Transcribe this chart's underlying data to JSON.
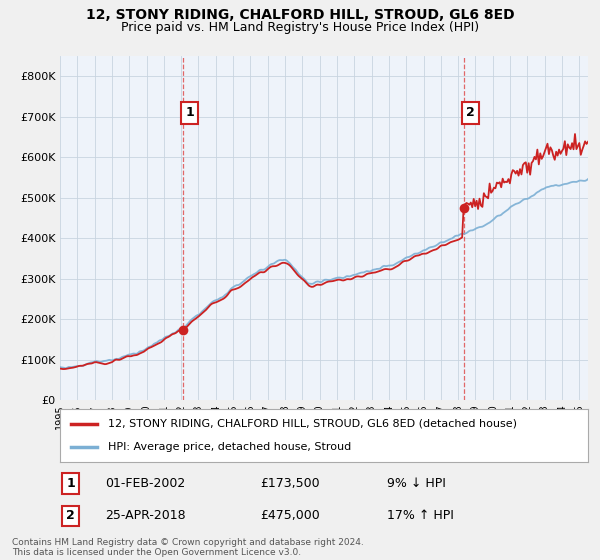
{
  "title_line1": "12, STONY RIDING, CHALFORD HILL, STROUD, GL6 8ED",
  "title_line2": "Price paid vs. HM Land Registry's House Price Index (HPI)",
  "legend_label1": "12, STONY RIDING, CHALFORD HILL, STROUD, GL6 8ED (detached house)",
  "legend_label2": "HPI: Average price, detached house, Stroud",
  "annotation1_label": "1",
  "annotation1_date": "01-FEB-2002",
  "annotation1_price": "£173,500",
  "annotation1_hpi": "9% ↓ HPI",
  "annotation2_label": "2",
  "annotation2_date": "25-APR-2018",
  "annotation2_price": "£475,000",
  "annotation2_hpi": "17% ↑ HPI",
  "footer": "Contains HM Land Registry data © Crown copyright and database right 2024.\nThis data is licensed under the Open Government Licence v3.0.",
  "hpi_color": "#7bafd4",
  "sale_color": "#cc2222",
  "vline_color": "#dd4444",
  "marker_color": "#cc2222",
  "ylim_min": 0,
  "ylim_max": 850000,
  "yticks": [
    0,
    100000,
    200000,
    300000,
    400000,
    500000,
    600000,
    700000,
    800000
  ],
  "ytick_labels": [
    "£0",
    "£100K",
    "£200K",
    "£300K",
    "£400K",
    "£500K",
    "£600K",
    "£700K",
    "£800K"
  ],
  "sale1_x": 2002.08,
  "sale1_y": 173500,
  "sale2_x": 2018.32,
  "sale2_y": 475000,
  "xmin": 1995,
  "xmax": 2025.5,
  "background_color": "#f0f0f0",
  "plot_bg_color": "#eef3fa"
}
